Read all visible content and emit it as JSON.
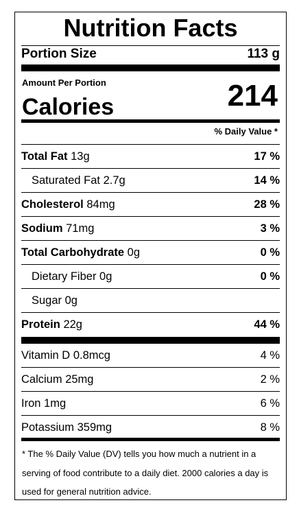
{
  "title": "Nutrition Facts",
  "portion": {
    "label": "Portion Size",
    "value": "113 g"
  },
  "amount_label": "Amount Per Portion",
  "calories": {
    "label": "Calories",
    "value": "214"
  },
  "dv_header": "% Daily Value *",
  "nutrients": [
    {
      "name": "Total Fat",
      "amount": "13g",
      "dv": "17 %",
      "bold": true,
      "indent": false
    },
    {
      "name": "Saturated Fat",
      "amount": "2.7g",
      "dv": "14 %",
      "bold": false,
      "indent": true
    },
    {
      "name": "Cholesterol",
      "amount": "84mg",
      "dv": "28 %",
      "bold": true,
      "indent": false
    },
    {
      "name": "Sodium",
      "amount": "71mg",
      "dv": "3 %",
      "bold": true,
      "indent": false
    },
    {
      "name": "Total Carbohydrate",
      "amount": "0g",
      "dv": "0 %",
      "bold": true,
      "indent": false
    },
    {
      "name": "Dietary Fiber",
      "amount": "0g",
      "dv": "0 %",
      "bold": false,
      "indent": true
    },
    {
      "name": "Sugar",
      "amount": "0g",
      "dv": "",
      "bold": false,
      "indent": true
    },
    {
      "name": "Protein",
      "amount": "22g",
      "dv": "44 %",
      "bold": true,
      "indent": false
    }
  ],
  "vitamins": [
    {
      "name": "Vitamin D",
      "amount": "0.8mcg",
      "dv": "4 %"
    },
    {
      "name": "Calcium",
      "amount": "25mg",
      "dv": "2 %"
    },
    {
      "name": "Iron",
      "amount": "1mg",
      "dv": "6 %"
    },
    {
      "name": "Potassium",
      "amount": "359mg",
      "dv": "8 %"
    }
  ],
  "footnote": "* The % Daily Value (DV) tells you how much a nutrient in a serving of food contribute to a daily diet. 2000 calories a day is used for general nutrition advice."
}
